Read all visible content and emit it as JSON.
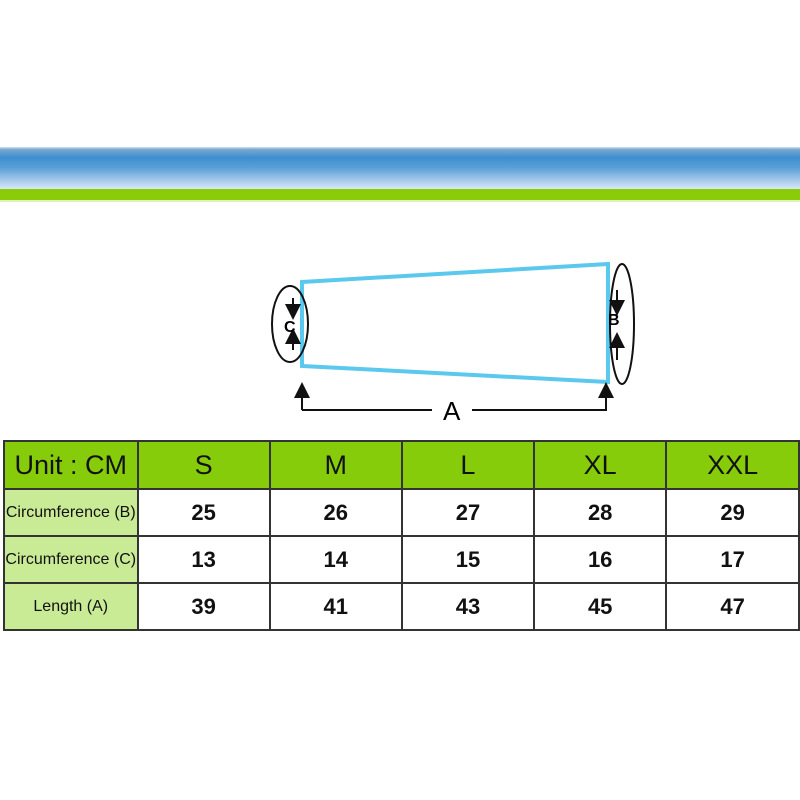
{
  "diagram": {
    "label_a": "A",
    "label_b": "B",
    "label_c": "C",
    "outline_color": "#5bc8ee"
  },
  "colors": {
    "header_green": "#86cc0a",
    "label_green": "#c9eb96",
    "band_blue": "#3d8fd0"
  },
  "table": {
    "unit_label": "Unit : CM",
    "sizes": [
      "S",
      "M",
      "L",
      "XL",
      "XXL"
    ],
    "rows": [
      {
        "label": "Circumference (B)",
        "values": [
          "25",
          "26",
          "27",
          "28",
          "29"
        ]
      },
      {
        "label": "Circumference (C)",
        "values": [
          "13",
          "14",
          "15",
          "16",
          "17"
        ]
      },
      {
        "label": "Length (A)",
        "values": [
          "39",
          "41",
          "43",
          "45",
          "47"
        ]
      }
    ]
  }
}
